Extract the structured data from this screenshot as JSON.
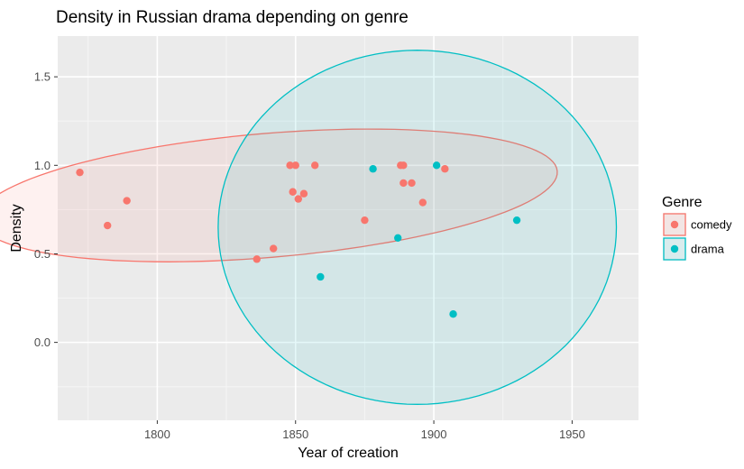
{
  "chart_data": {
    "type": "scatter",
    "title": "Density in Russian drama depending on genre",
    "xlabel": "Year of creation",
    "ylabel": "Density",
    "xlim": [
      1764,
      1974
    ],
    "ylim": [
      -0.44,
      1.73
    ],
    "x_ticks": [
      1800,
      1850,
      1900,
      1950
    ],
    "y_ticks": [
      0.0,
      0.5,
      1.0,
      1.5
    ],
    "x_tick_labels": [
      "1800",
      "1850",
      "1900",
      "1950"
    ],
    "y_tick_labels": [
      "0.0",
      "0.5",
      "1.0",
      "1.5"
    ],
    "grid": true,
    "legend": {
      "title": "Genre",
      "position": "right",
      "entries": [
        "comedy",
        "drama"
      ]
    },
    "series": [
      {
        "name": "comedy",
        "color": "#F8766D",
        "points": [
          {
            "x": 1772,
            "y": 0.96
          },
          {
            "x": 1782,
            "y": 0.66
          },
          {
            "x": 1789,
            "y": 0.8
          },
          {
            "x": 1836,
            "y": 0.47
          },
          {
            "x": 1842,
            "y": 0.53
          },
          {
            "x": 1848,
            "y": 1.0
          },
          {
            "x": 1849,
            "y": 0.85
          },
          {
            "x": 1850,
            "y": 1.0
          },
          {
            "x": 1851,
            "y": 0.81
          },
          {
            "x": 1853,
            "y": 0.84
          },
          {
            "x": 1857,
            "y": 1.0
          },
          {
            "x": 1875,
            "y": 0.69
          },
          {
            "x": 1888,
            "y": 1.0
          },
          {
            "x": 1889,
            "y": 0.9
          },
          {
            "x": 1889,
            "y": 1.0
          },
          {
            "x": 1892,
            "y": 0.9
          },
          {
            "x": 1896,
            "y": 0.79
          },
          {
            "x": 1904,
            "y": 0.98
          }
        ],
        "ellipse": {
          "cx": 1840,
          "cy": 0.83,
          "rx": 105,
          "ry": 0.35,
          "angle": -4.8
        }
      },
      {
        "name": "drama",
        "color": "#00BFC4",
        "points": [
          {
            "x": 1859,
            "y": 0.37
          },
          {
            "x": 1878,
            "y": 0.98
          },
          {
            "x": 1887,
            "y": 0.59
          },
          {
            "x": 1901,
            "y": 1.0
          },
          {
            "x": 1907,
            "y": 0.16
          },
          {
            "x": 1930,
            "y": 0.69
          }
        ],
        "ellipse": {
          "cx": 1894,
          "cy": 0.65,
          "rx": 72,
          "ry": 1.0,
          "angle": 0
        }
      }
    ]
  }
}
